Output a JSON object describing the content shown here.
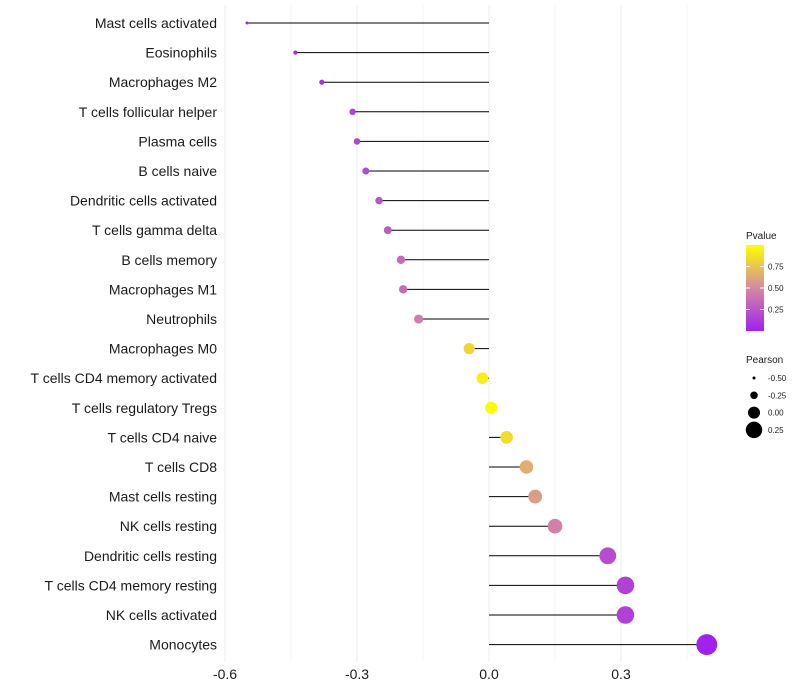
{
  "chart_data": {
    "type": "lollipop",
    "title": "",
    "xlabel": "",
    "ylabel": "",
    "xlim": [
      -0.6,
      0.5
    ],
    "x_ticks": [
      {
        "value": -0.6,
        "label": "-0.6"
      },
      {
        "value": -0.3,
        "label": "-0.3"
      },
      {
        "value": 0.0,
        "label": "0.0"
      },
      {
        "value": 0.3,
        "label": "0.3"
      }
    ],
    "series": [
      {
        "name": "Mast cells activated",
        "pearson": -0.55,
        "pvalue": 0.01
      },
      {
        "name": "Eosinophils",
        "pearson": -0.44,
        "pvalue": 0.03
      },
      {
        "name": "Macrophages M2",
        "pearson": -0.38,
        "pvalue": 0.07
      },
      {
        "name": "T cells follicular helper",
        "pearson": -0.31,
        "pvalue": 0.15
      },
      {
        "name": "Plasma cells",
        "pearson": -0.3,
        "pvalue": 0.17
      },
      {
        "name": "B cells naive",
        "pearson": -0.28,
        "pvalue": 0.2
      },
      {
        "name": "Dendritic cells activated",
        "pearson": -0.25,
        "pvalue": 0.25
      },
      {
        "name": "T cells gamma delta",
        "pearson": -0.23,
        "pvalue": 0.28
      },
      {
        "name": "B cells memory",
        "pearson": -0.2,
        "pvalue": 0.35
      },
      {
        "name": "Macrophages M1",
        "pearson": -0.195,
        "pvalue": 0.37
      },
      {
        "name": "Neutrophils",
        "pearson": -0.16,
        "pvalue": 0.45
      },
      {
        "name": "Macrophages M0",
        "pearson": -0.045,
        "pvalue": 0.82
      },
      {
        "name": "T cells CD4 memory activated",
        "pearson": -0.015,
        "pvalue": 0.93
      },
      {
        "name": "T cells regulatory  Tregs ",
        "pearson": 0.005,
        "pvalue": 0.98
      },
      {
        "name": "T cells CD4 naive",
        "pearson": 0.04,
        "pvalue": 0.85
      },
      {
        "name": "T cells CD8",
        "pearson": 0.085,
        "pvalue": 0.65
      },
      {
        "name": "Mast cells resting",
        "pearson": 0.105,
        "pvalue": 0.58
      },
      {
        "name": "NK cells resting",
        "pearson": 0.15,
        "pvalue": 0.46
      },
      {
        "name": "Dendritic cells resting",
        "pearson": 0.27,
        "pvalue": 0.21
      },
      {
        "name": "T cells CD4 memory resting",
        "pearson": 0.31,
        "pvalue": 0.15
      },
      {
        "name": "NK cells activated",
        "pearson": 0.31,
        "pvalue": 0.15
      },
      {
        "name": "Monocytes",
        "pearson": 0.495,
        "pvalue": 0.01
      }
    ],
    "color_legend": {
      "title": "Pvalue",
      "ticks": [
        {
          "value": 0.75,
          "label": "0.75"
        },
        {
          "value": 0.5,
          "label": "0.50"
        },
        {
          "value": 0.25,
          "label": "0.25"
        }
      ],
      "range": [
        0.0,
        1.0
      ],
      "low_color": "#a020f0",
      "mid_color": "#d48aa0",
      "high_color": "#ffff00"
    },
    "size_legend": {
      "title": "Pearson",
      "entries": [
        {
          "value": -0.5,
          "label": "-0.50"
        },
        {
          "value": -0.25,
          "label": "-0.25"
        },
        {
          "value": 0.0,
          "label": "0.00"
        },
        {
          "value": 0.25,
          "label": "0.25"
        }
      ]
    },
    "legend_position": "right",
    "grid": true
  }
}
